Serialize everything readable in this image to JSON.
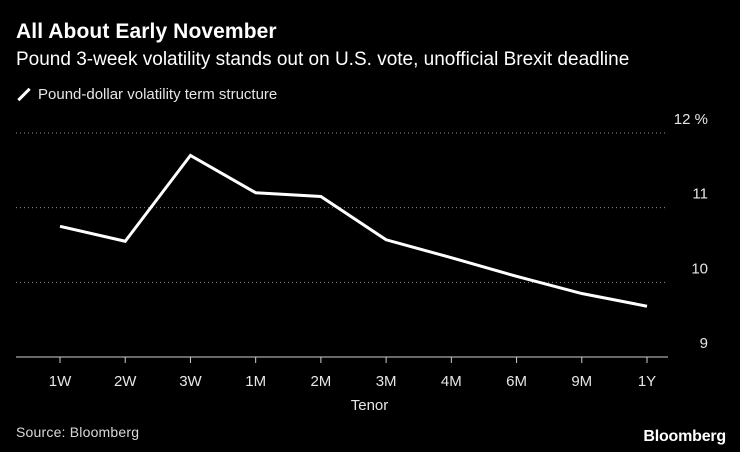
{
  "header": {
    "title": "All About Early November",
    "subtitle": "Pound 3-week volatility stands out on U.S. vote, unofficial Brexit deadline"
  },
  "legend": {
    "label": "Pound-dollar volatility term structure",
    "color": "#ffffff"
  },
  "footer": {
    "source": "Source: Bloomberg",
    "brand": "Bloomberg"
  },
  "chart_data": {
    "type": "line",
    "title": "All About Early November",
    "subtitle": "Pound 3-week volatility stands out on U.S. vote, unofficial Brexit deadline",
    "xlabel": "Tenor",
    "ylabel": "",
    "y_unit": "%",
    "categories": [
      "1W",
      "2W",
      "3W",
      "1M",
      "2M",
      "3M",
      "4M",
      "6M",
      "9M",
      "1Y"
    ],
    "series": [
      {
        "name": "Pound-dollar volatility term structure",
        "color": "#ffffff",
        "values": [
          10.75,
          10.55,
          11.7,
          11.2,
          11.15,
          10.57,
          10.33,
          10.08,
          9.85,
          9.68
        ]
      }
    ],
    "ylim": [
      9,
      12
    ],
    "yticks": [
      9,
      10,
      11,
      12
    ],
    "ytick_labels": [
      "9",
      "10",
      "11",
      "12 %"
    ],
    "grid": true,
    "legend_position": "top-left",
    "background": "#000000"
  }
}
